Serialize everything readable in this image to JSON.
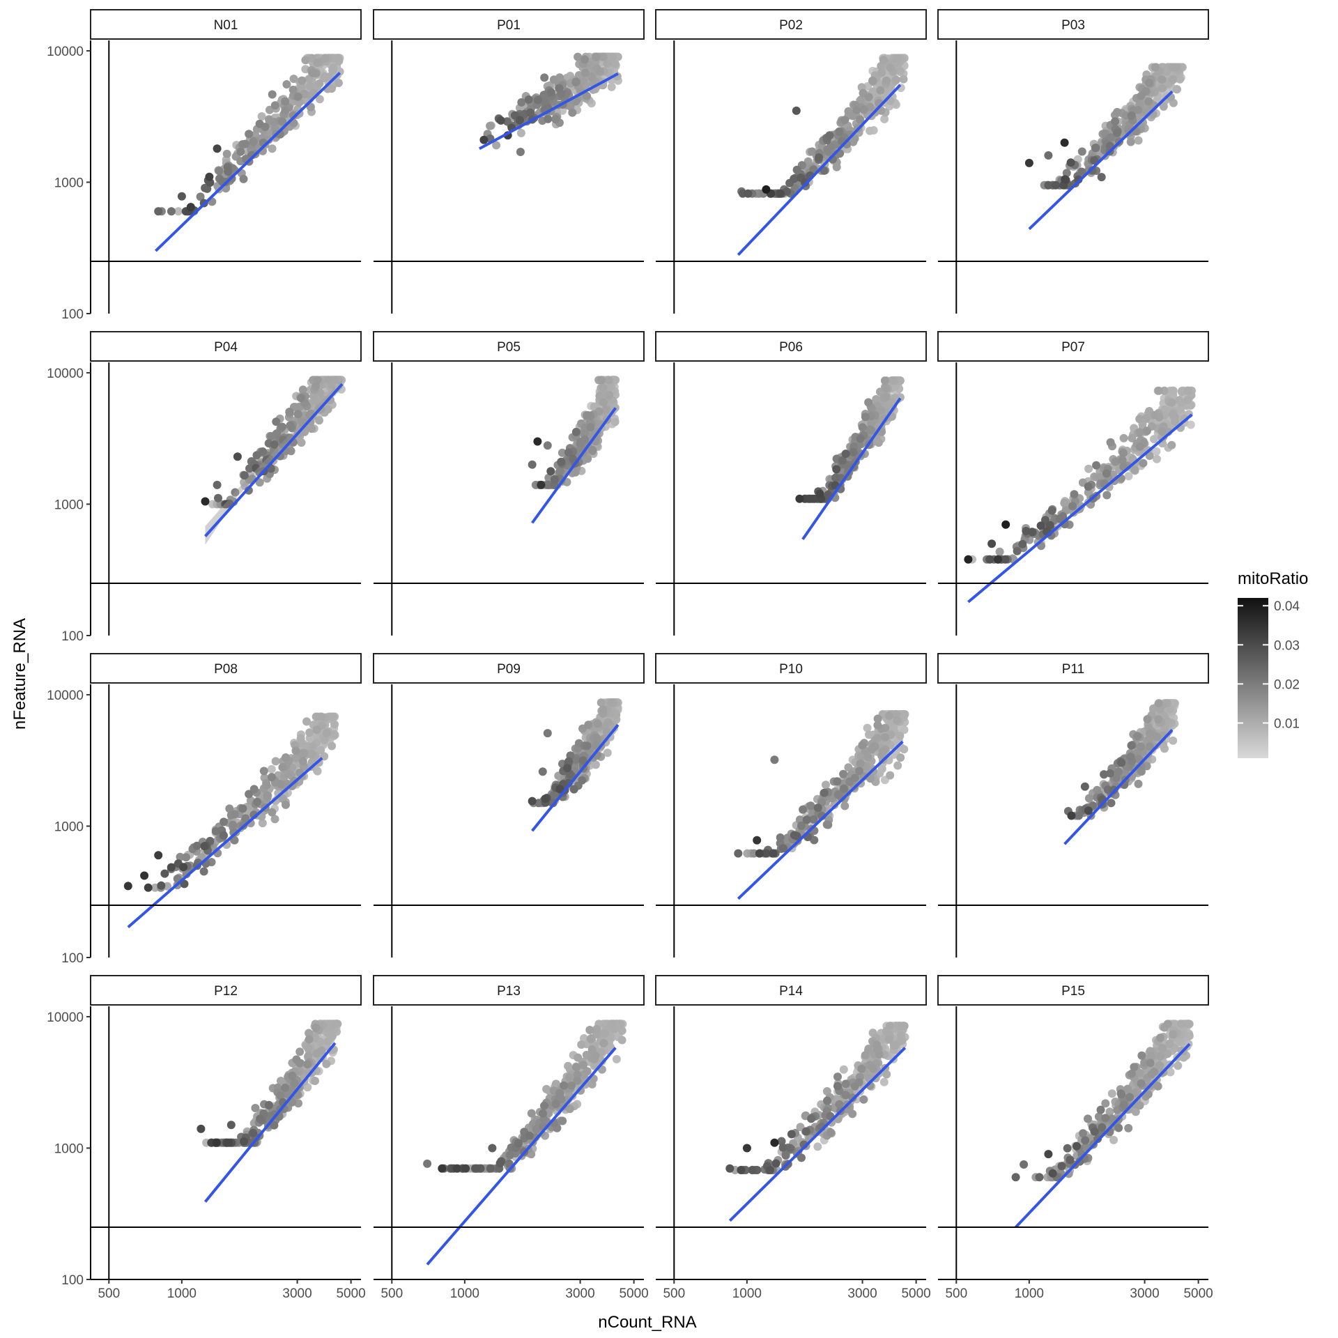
{
  "chart_data": {
    "type": "scatter",
    "facet_by": "sample",
    "facets": [
      "N01",
      "P01",
      "P02",
      "P03",
      "P04",
      "P05",
      "P06",
      "P07",
      "P08",
      "P09",
      "P10",
      "P11",
      "P12",
      "P13",
      "P14",
      "P15"
    ],
    "xlabel": "nCount_RNA",
    "ylabel": "nFeature_RNA",
    "x_scale": "log10",
    "y_scale": "log10",
    "xlim": [
      420,
      5500
    ],
    "ylim": [
      100,
      12000
    ],
    "x_ticks": [
      500,
      1000,
      3000,
      5000
    ],
    "x_tick_labels": [
      "500",
      "1000",
      "3000",
      "5000"
    ],
    "y_ticks": [
      100,
      1000,
      10000
    ],
    "y_tick_labels": [
      "100",
      "1000",
      "10000"
    ],
    "reference_lines": {
      "vline_x": 500,
      "hline_y": 250
    },
    "grid": false,
    "point_clusters": {
      "N01": {
        "x_range": [
          780,
          4500
        ],
        "y_range": [
          600,
          8800
        ],
        "low_tail": [
          [
            800,
            600
          ],
          [
            1000,
            780
          ],
          [
            1300,
            1100
          ],
          [
            1400,
            1800
          ]
        ]
      },
      "P01": {
        "x_range": [
          1150,
          4300
        ],
        "y_range": [
          1700,
          9000
        ],
        "low_tail": [
          [
            1200,
            2100
          ],
          [
            1700,
            1700
          ],
          [
            1900,
            3000
          ]
        ]
      },
      "P02": {
        "x_range": [
          920,
          4500
        ],
        "y_range": [
          820,
          8800
        ],
        "low_tail": [
          [
            950,
            850
          ],
          [
            1200,
            880
          ],
          [
            1600,
            3500
          ]
        ]
      },
      "P03": {
        "x_range": [
          1000,
          4300
        ],
        "y_range": [
          950,
          7500
        ],
        "low_tail": [
          [
            1000,
            1400
          ],
          [
            1200,
            1600
          ],
          [
            1400,
            2000
          ]
        ]
      },
      "P04": {
        "x_range": [
          1250,
          4600
        ],
        "y_range": [
          1000,
          8800
        ],
        "low_tail": [
          [
            1250,
            1050
          ],
          [
            1400,
            1400
          ],
          [
            1700,
            2300
          ]
        ]
      },
      "P05": {
        "x_range": [
          1900,
          4200
        ],
        "y_range": [
          1400,
          8800
        ],
        "low_tail": [
          [
            1900,
            2000
          ],
          [
            2000,
            3000
          ],
          [
            2200,
            2800
          ]
        ]
      },
      "P06": {
        "x_range": [
          1650,
          4300
        ],
        "y_range": [
          1100,
          8700
        ],
        "low_tail": [
          [
            1650,
            1100
          ],
          [
            2000,
            1200
          ]
        ]
      },
      "P07": {
        "x_range": [
          560,
          4700
        ],
        "y_range": [
          380,
          7300
        ],
        "low_tail": [
          [
            560,
            380
          ],
          [
            700,
            500
          ],
          [
            800,
            700
          ]
        ]
      },
      "P08": {
        "x_range": [
          600,
          4300
        ],
        "y_range": [
          340,
          6800
        ],
        "low_tail": [
          [
            600,
            350
          ],
          [
            700,
            420
          ],
          [
            800,
            600
          ]
        ]
      },
      "P09": {
        "x_range": [
          1900,
          4300
        ],
        "y_range": [
          1500,
          8700
        ],
        "low_tail": [
          [
            1900,
            1550
          ],
          [
            2100,
            2600
          ],
          [
            2200,
            5100
          ]
        ]
      },
      "P10": {
        "x_range": [
          920,
          4500
        ],
        "y_range": [
          620,
          7100
        ],
        "low_tail": [
          [
            920,
            620
          ],
          [
            1100,
            780
          ],
          [
            1300,
            3200
          ]
        ]
      },
      "P11": {
        "x_range": [
          1400,
          4000
        ],
        "y_range": [
          1200,
          8600
        ],
        "low_tail": [
          [
            1450,
            1300
          ],
          [
            1600,
            1200
          ],
          [
            1700,
            2000
          ]
        ]
      },
      "P12": {
        "x_range": [
          1200,
          4400
        ],
        "y_range": [
          1100,
          8800
        ],
        "low_tail": [
          [
            1200,
            1400
          ],
          [
            1400,
            1100
          ],
          [
            1600,
            1500
          ]
        ]
      },
      "P13": {
        "x_range": [
          700,
          4500
        ],
        "y_range": [
          700,
          8800
        ],
        "low_tail": [
          [
            700,
            760
          ],
          [
            900,
            700
          ],
          [
            1300,
            1000
          ]
        ]
      },
      "P14": {
        "x_range": [
          850,
          4500
        ],
        "y_range": [
          680,
          8500
        ],
        "low_tail": [
          [
            850,
            700
          ],
          [
            1000,
            1000
          ],
          [
            1300,
            1100
          ]
        ]
      },
      "P15": {
        "x_range": [
          880,
          4600
        ],
        "y_range": [
          600,
          8800
        ],
        "low_tail": [
          [
            880,
            600
          ],
          [
            950,
            750
          ],
          [
            1200,
            900
          ]
        ]
      }
    },
    "fit_lines": {
      "N01": [
        [
          780,
          300
        ],
        [
          4500,
          6800
        ]
      ],
      "P01": [
        [
          1150,
          1800
        ],
        [
          4300,
          6700
        ]
      ],
      "P02": [
        [
          920,
          280
        ],
        [
          4300,
          5500
        ]
      ],
      "P03": [
        [
          1000,
          440
        ],
        [
          3900,
          4900
        ]
      ],
      "P04": [
        [
          1250,
          570
        ],
        [
          4600,
          8200
        ]
      ],
      "P05": [
        [
          1900,
          720
        ],
        [
          4200,
          5400
        ]
      ],
      "P06": [
        [
          1700,
          540
        ],
        [
          4300,
          6400
        ]
      ],
      "P07": [
        [
          560,
          180
        ],
        [
          4700,
          4800
        ]
      ],
      "P08": [
        [
          600,
          170
        ],
        [
          3800,
          3300
        ]
      ],
      "P09": [
        [
          1900,
          920
        ],
        [
          4300,
          5900
        ]
      ],
      "P10": [
        [
          920,
          280
        ],
        [
          4400,
          4400
        ]
      ],
      "P11": [
        [
          1400,
          730
        ],
        [
          3900,
          5400
        ]
      ],
      "P12": [
        [
          1250,
          390
        ],
        [
          4300,
          6300
        ]
      ],
      "P13": [
        [
          700,
          130
        ],
        [
          4200,
          5800
        ]
      ],
      "P14": [
        [
          850,
          280
        ],
        [
          4500,
          5800
        ]
      ],
      "P15": [
        [
          880,
          250
        ],
        [
          4600,
          6200
        ]
      ]
    },
    "confidence_band": {
      "P04": [
        [
          1250,
          490,
          680
        ],
        [
          1700,
          1150,
          1300
        ],
        [
          4600,
          7600,
          8900
        ]
      ]
    },
    "color_variable": "mitoRatio",
    "legend": {
      "title": "mitoRatio",
      "ticks": [
        0.01,
        0.02,
        0.03,
        0.04
      ],
      "tick_labels": [
        "0.01",
        "0.02",
        "0.03",
        "0.04"
      ],
      "range": [
        0.001,
        0.042
      ],
      "low_color": "#d9d9d9",
      "high_color": "#111111",
      "placement": "right"
    },
    "fit_color": "#3355e8"
  }
}
